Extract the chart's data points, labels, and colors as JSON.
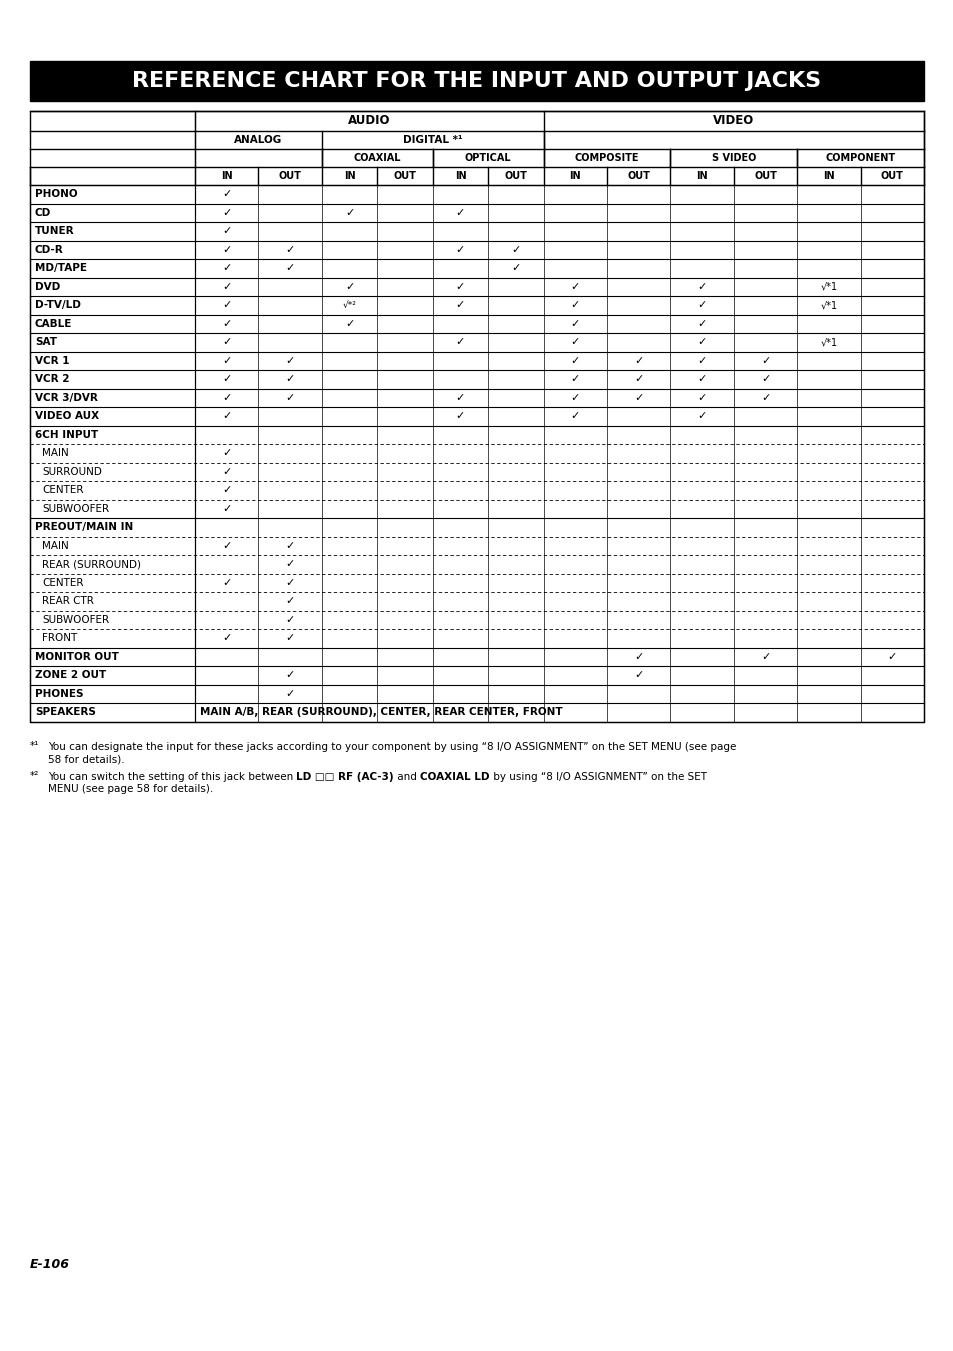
{
  "title": "REFERENCE CHART FOR THE INPUT AND OUTPUT JACKS",
  "page_label": "E-106",
  "col_groups": [
    {
      "label": "AUDIO",
      "span": 6
    },
    {
      "label": "VIDEO",
      "span": 6
    }
  ],
  "col_subgroups": [
    {
      "label": "ANALOG",
      "span": 2,
      "parent": "AUDIO"
    },
    {
      "label": "DIGITAL *¹",
      "span": 4,
      "parent": "AUDIO"
    },
    {
      "label": "COMPOSITE",
      "span": 2,
      "parent": "VIDEO"
    },
    {
      "label": "S VIDEO",
      "span": 2,
      "parent": "VIDEO"
    },
    {
      "label": "COMPONENT",
      "span": 2,
      "parent": "VIDEO"
    }
  ],
  "col_sub2groups": [
    {
      "label": "",
      "span": 2,
      "parent": "ANALOG"
    },
    {
      "label": "COAXIAL",
      "span": 2,
      "parent": "DIGITAL"
    },
    {
      "label": "OPTICAL",
      "span": 2,
      "parent": "DIGITAL"
    },
    {
      "label": "",
      "span": 2,
      "parent": "COMPOSITE"
    },
    {
      "label": "",
      "span": 2,
      "parent": "S VIDEO"
    },
    {
      "label": "",
      "span": 2,
      "parent": "COMPONENT"
    }
  ],
  "col_headers": [
    "IN",
    "OUT",
    "IN",
    "OUT",
    "IN",
    "OUT",
    "IN",
    "OUT",
    "IN",
    "OUT",
    "IN",
    "OUT"
  ],
  "rows": [
    {
      "label": "PHONO",
      "indent": false,
      "dashed": false,
      "bold": true,
      "checks": [
        1,
        0,
        0,
        0,
        0,
        0,
        0,
        0,
        0,
        0,
        0,
        0
      ],
      "special": [
        "",
        "",
        "",
        "",
        "",
        "",
        "",
        "",
        "",
        "",
        "",
        ""
      ]
    },
    {
      "label": "CD",
      "indent": false,
      "dashed": false,
      "bold": true,
      "checks": [
        1,
        0,
        1,
        0,
        1,
        0,
        0,
        0,
        0,
        0,
        0,
        0
      ],
      "special": [
        "",
        "",
        "",
        "",
        "",
        "",
        "",
        "",
        "",
        "",
        "",
        ""
      ]
    },
    {
      "label": "TUNER",
      "indent": false,
      "dashed": false,
      "bold": true,
      "checks": [
        1,
        0,
        0,
        0,
        0,
        0,
        0,
        0,
        0,
        0,
        0,
        0
      ],
      "special": [
        "",
        "",
        "",
        "",
        "",
        "",
        "",
        "",
        "",
        "",
        "",
        ""
      ]
    },
    {
      "label": "CD-R",
      "indent": false,
      "dashed": false,
      "bold": true,
      "checks": [
        1,
        1,
        0,
        0,
        1,
        1,
        0,
        0,
        0,
        0,
        0,
        0
      ],
      "special": [
        "",
        "",
        "",
        "",
        "",
        "",
        "",
        "",
        "",
        "",
        "",
        ""
      ]
    },
    {
      "label": "MD/TAPE",
      "indent": false,
      "dashed": false,
      "bold": true,
      "checks": [
        1,
        1,
        0,
        0,
        0,
        1,
        0,
        0,
        0,
        0,
        0,
        0
      ],
      "special": [
        "",
        "",
        "",
        "",
        "",
        "",
        "",
        "",
        "",
        "",
        "",
        ""
      ]
    },
    {
      "label": "DVD",
      "indent": false,
      "dashed": false,
      "bold": true,
      "checks": [
        1,
        0,
        1,
        0,
        1,
        0,
        1,
        0,
        1,
        0,
        1,
        0
      ],
      "special": [
        "",
        "",
        "",
        "",
        "",
        "",
        "",
        "",
        "",
        "",
        "√*1",
        ""
      ]
    },
    {
      "label": "D-TV/LD",
      "indent": false,
      "dashed": false,
      "bold": true,
      "checks": [
        1,
        0,
        1,
        0,
        1,
        0,
        1,
        0,
        1,
        0,
        1,
        0
      ],
      "special": [
        "",
        "",
        "*2",
        "",
        "",
        "",
        "",
        "",
        "",
        "",
        "√*1",
        ""
      ]
    },
    {
      "label": "CABLE",
      "indent": false,
      "dashed": false,
      "bold": true,
      "checks": [
        1,
        0,
        1,
        0,
        0,
        0,
        1,
        0,
        1,
        0,
        0,
        0
      ],
      "special": [
        "",
        "",
        "",
        "",
        "",
        "",
        "",
        "",
        "",
        "",
        "",
        ""
      ]
    },
    {
      "label": "SAT",
      "indent": false,
      "dashed": false,
      "bold": true,
      "checks": [
        1,
        0,
        0,
        0,
        1,
        0,
        1,
        0,
        1,
        0,
        1,
        0
      ],
      "special": [
        "",
        "",
        "",
        "",
        "",
        "",
        "",
        "",
        "",
        "",
        "√*1",
        ""
      ]
    },
    {
      "label": "VCR 1",
      "indent": false,
      "dashed": false,
      "bold": true,
      "checks": [
        1,
        1,
        0,
        0,
        0,
        0,
        1,
        1,
        1,
        1,
        0,
        0
      ],
      "special": [
        "",
        "",
        "",
        "",
        "",
        "",
        "",
        "",
        "",
        "",
        "",
        ""
      ]
    },
    {
      "label": "VCR 2",
      "indent": false,
      "dashed": false,
      "bold": true,
      "checks": [
        1,
        1,
        0,
        0,
        0,
        0,
        1,
        1,
        1,
        1,
        0,
        0
      ],
      "special": [
        "",
        "",
        "",
        "",
        "",
        "",
        "",
        "",
        "",
        "",
        "",
        ""
      ]
    },
    {
      "label": "VCR 3/DVR",
      "indent": false,
      "dashed": false,
      "bold": true,
      "checks": [
        1,
        1,
        0,
        0,
        1,
        0,
        1,
        1,
        1,
        1,
        0,
        0
      ],
      "special": [
        "",
        "",
        "",
        "",
        "",
        "",
        "",
        "",
        "",
        "",
        "",
        ""
      ]
    },
    {
      "label": "VIDEO AUX",
      "indent": false,
      "dashed": false,
      "bold": true,
      "checks": [
        1,
        0,
        0,
        0,
        1,
        0,
        1,
        0,
        1,
        0,
        0,
        0
      ],
      "special": [
        "",
        "",
        "",
        "",
        "",
        "",
        "",
        "",
        "",
        "",
        "",
        ""
      ]
    },
    {
      "label": "6CH INPUT",
      "indent": false,
      "dashed": false,
      "bold": true,
      "checks": [
        0,
        0,
        0,
        0,
        0,
        0,
        0,
        0,
        0,
        0,
        0,
        0
      ],
      "special": [
        "",
        "",
        "",
        "",
        "",
        "",
        "",
        "",
        "",
        "",
        "",
        ""
      ]
    },
    {
      "label": "  MAIN",
      "indent": true,
      "dashed": true,
      "bold": false,
      "checks": [
        1,
        0,
        0,
        0,
        0,
        0,
        0,
        0,
        0,
        0,
        0,
        0
      ],
      "special": [
        "",
        "",
        "",
        "",
        "",
        "",
        "",
        "",
        "",
        "",
        "",
        ""
      ]
    },
    {
      "label": "  SURROUND",
      "indent": true,
      "dashed": true,
      "bold": false,
      "checks": [
        1,
        0,
        0,
        0,
        0,
        0,
        0,
        0,
        0,
        0,
        0,
        0
      ],
      "special": [
        "",
        "",
        "",
        "",
        "",
        "",
        "",
        "",
        "",
        "",
        "",
        ""
      ]
    },
    {
      "label": "  CENTER",
      "indent": true,
      "dashed": true,
      "bold": false,
      "checks": [
        1,
        0,
        0,
        0,
        0,
        0,
        0,
        0,
        0,
        0,
        0,
        0
      ],
      "special": [
        "",
        "",
        "",
        "",
        "",
        "",
        "",
        "",
        "",
        "",
        "",
        ""
      ]
    },
    {
      "label": "  SUBWOOFER",
      "indent": true,
      "dashed": true,
      "bold": false,
      "checks": [
        1,
        0,
        0,
        0,
        0,
        0,
        0,
        0,
        0,
        0,
        0,
        0
      ],
      "special": [
        "",
        "",
        "",
        "",
        "",
        "",
        "",
        "",
        "",
        "",
        "",
        ""
      ]
    },
    {
      "label": "PREOUT/MAIN IN",
      "indent": false,
      "dashed": false,
      "bold": true,
      "checks": [
        0,
        0,
        0,
        0,
        0,
        0,
        0,
        0,
        0,
        0,
        0,
        0
      ],
      "special": [
        "",
        "",
        "",
        "",
        "",
        "",
        "",
        "",
        "",
        "",
        "",
        ""
      ]
    },
    {
      "label": "  MAIN",
      "indent": true,
      "dashed": true,
      "bold": false,
      "checks": [
        1,
        1,
        0,
        0,
        0,
        0,
        0,
        0,
        0,
        0,
        0,
        0
      ],
      "special": [
        "",
        "",
        "",
        "",
        "",
        "",
        "",
        "",
        "",
        "",
        "",
        ""
      ]
    },
    {
      "label": "  REAR (SURROUND)",
      "indent": true,
      "dashed": true,
      "bold": false,
      "checks": [
        0,
        1,
        0,
        0,
        0,
        0,
        0,
        0,
        0,
        0,
        0,
        0
      ],
      "special": [
        "",
        "",
        "",
        "",
        "",
        "",
        "",
        "",
        "",
        "",
        "",
        ""
      ]
    },
    {
      "label": "  CENTER",
      "indent": true,
      "dashed": true,
      "bold": false,
      "checks": [
        1,
        1,
        0,
        0,
        0,
        0,
        0,
        0,
        0,
        0,
        0,
        0
      ],
      "special": [
        "",
        "",
        "",
        "",
        "",
        "",
        "",
        "",
        "",
        "",
        "",
        ""
      ]
    },
    {
      "label": "  REAR CTR",
      "indent": true,
      "dashed": true,
      "bold": false,
      "checks": [
        0,
        1,
        0,
        0,
        0,
        0,
        0,
        0,
        0,
        0,
        0,
        0
      ],
      "special": [
        "",
        "",
        "",
        "",
        "",
        "",
        "",
        "",
        "",
        "",
        "",
        ""
      ]
    },
    {
      "label": "  SUBWOOFER",
      "indent": true,
      "dashed": true,
      "bold": false,
      "checks": [
        0,
        1,
        0,
        0,
        0,
        0,
        0,
        0,
        0,
        0,
        0,
        0
      ],
      "special": [
        "",
        "",
        "",
        "",
        "",
        "",
        "",
        "",
        "",
        "",
        "",
        ""
      ]
    },
    {
      "label": "  FRONT",
      "indent": true,
      "dashed": true,
      "bold": false,
      "checks": [
        1,
        1,
        0,
        0,
        0,
        0,
        0,
        0,
        0,
        0,
        0,
        0
      ],
      "special": [
        "",
        "",
        "",
        "",
        "",
        "",
        "",
        "",
        "",
        "",
        "",
        ""
      ]
    },
    {
      "label": "MONITOR OUT",
      "indent": false,
      "dashed": false,
      "bold": true,
      "checks": [
        0,
        0,
        0,
        0,
        0,
        0,
        0,
        1,
        0,
        1,
        0,
        1
      ],
      "special": [
        "",
        "",
        "",
        "",
        "",
        "",
        "",
        "",
        "",
        "",
        "",
        ""
      ]
    },
    {
      "label": "ZONE 2 OUT",
      "indent": false,
      "dashed": false,
      "bold": true,
      "checks": [
        0,
        1,
        0,
        0,
        0,
        0,
        0,
        1,
        0,
        0,
        0,
        0
      ],
      "special": [
        "",
        "",
        "",
        "",
        "",
        "",
        "",
        "",
        "",
        "",
        "",
        ""
      ]
    },
    {
      "label": "PHONES",
      "indent": false,
      "dashed": false,
      "bold": true,
      "checks": [
        0,
        1,
        0,
        0,
        0,
        0,
        0,
        0,
        0,
        0,
        0,
        0
      ],
      "special": [
        "",
        "",
        "",
        "",
        "",
        "",
        "",
        "",
        "",
        "",
        "",
        ""
      ]
    },
    {
      "label": "SPEAKERS",
      "indent": false,
      "dashed": false,
      "bold": true,
      "checks": [
        0,
        0,
        0,
        0,
        0,
        0,
        0,
        0,
        0,
        0,
        0,
        0
      ],
      "special": [
        "",
        "",
        "",
        "",
        "",
        "",
        "",
        "",
        "",
        "",
        "",
        ""
      ],
      "span_text": "MAIN A/B, REAR (SURROUND), CENTER, REAR CENTER, FRONT"
    }
  ],
  "footnote1": "*¹  You can designate the input for these jacks according to your component by using “8 I/O ASSIGNMENT” on the SET MENU (see page\n    58 for details).",
  "footnote2": "*²  You can switch the setting of this jack between LD □□ RF (AC-3) and COAXIAL LD by using “8 I/O ASSIGNMENT” on the SET\n    MENU (see page 58 for details)."
}
